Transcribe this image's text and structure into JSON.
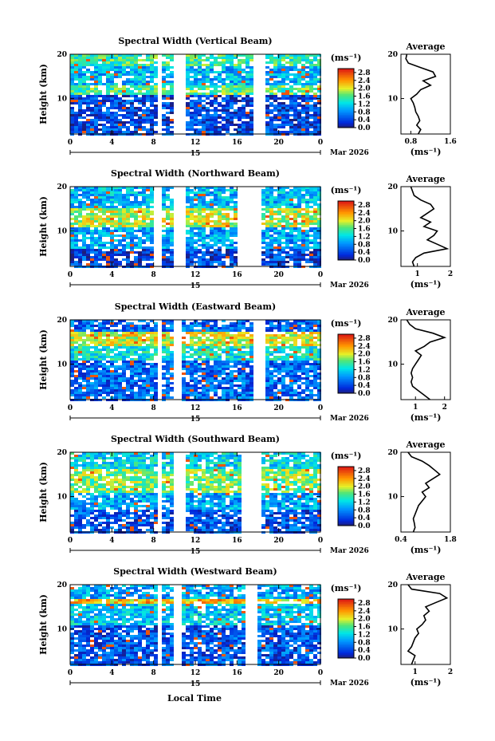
{
  "figure": {
    "xlabel": "Local Time",
    "date_label": "Mar 2026",
    "day_label": "15",
    "ylabel": "Height (km)",
    "unit_label": "(ms⁻¹)",
    "avg_title": "Average",
    "avg_xlabel": "(ms⁻¹)"
  },
  "chart_data": [
    {
      "type": "heatmap",
      "title": "Spectral Width (Vertical Beam)",
      "x_ticks": [
        "0",
        "4",
        "8",
        "12",
        "16",
        "20",
        "0"
      ],
      "xlim": [
        0,
        24
      ],
      "y_ticks": [
        "10",
        "20"
      ],
      "ylim": [
        2,
        20
      ],
      "colorbar_ticks": [
        "0.0",
        "0.4",
        "0.8",
        "1.2",
        "1.6",
        "2.0",
        "2.4",
        "2.8"
      ],
      "colorbar_range": [
        0,
        3
      ],
      "data_gaps_hours": [
        [
          8.3,
          8.6
        ],
        [
          10.0,
          10.9
        ],
        [
          17.5,
          18.7
        ]
      ],
      "layers": [
        {
          "y0": 17.5,
          "y1": 20,
          "v": 1.5
        },
        {
          "y0": 13,
          "y1": 17.5,
          "v": 1.0
        },
        {
          "y0": 11,
          "y1": 13,
          "v": 1.6
        },
        {
          "y0": 2,
          "y1": 11,
          "v": 0.4
        }
      ],
      "average": {
        "xlim": [
          0.6,
          1.6
        ],
        "x_ticks": [
          "0.8",
          "1.6"
        ],
        "y_ticks": [
          "10",
          "20"
        ],
        "heights": [
          2,
          3,
          4,
          5,
          6,
          7,
          8,
          9,
          10,
          11,
          12,
          13,
          14,
          15,
          16,
          17,
          18,
          19,
          20
        ],
        "values": [
          0.95,
          1.0,
          0.92,
          0.98,
          0.95,
          0.9,
          0.88,
          0.85,
          0.8,
          0.92,
          1.0,
          1.2,
          1.05,
          1.3,
          1.25,
          1.0,
          0.75,
          0.7,
          0.72
        ]
      }
    },
    {
      "type": "heatmap",
      "title": "Spectral Width (Northward Beam)",
      "x_ticks": [
        "0",
        "4",
        "8",
        "12",
        "16",
        "20",
        "0"
      ],
      "xlim": [
        0,
        24
      ],
      "y_ticks": [
        "10",
        "20"
      ],
      "ylim": [
        2,
        20
      ],
      "colorbar_ticks": [
        "0.0",
        "0.4",
        "0.8",
        "1.2",
        "1.6",
        "2.0",
        "2.4",
        "2.8"
      ],
      "colorbar_range": [
        0,
        3
      ],
      "data_gaps_hours": [
        [
          8.2,
          8.7
        ],
        [
          10.1,
          11.0
        ],
        [
          16.0,
          18.5
        ]
      ],
      "layers": [
        {
          "y0": 15,
          "y1": 20,
          "v": 1.0
        },
        {
          "y0": 11,
          "y1": 15,
          "v": 1.9
        },
        {
          "y0": 6,
          "y1": 11,
          "v": 0.9
        },
        {
          "y0": 2,
          "y1": 6,
          "v": 0.4
        }
      ],
      "average": {
        "xlim": [
          0.5,
          2.0
        ],
        "x_ticks": [
          "1",
          "2"
        ],
        "y_ticks": [
          "10",
          "20"
        ],
        "heights": [
          2,
          3,
          4,
          5,
          6,
          7,
          8,
          9,
          10,
          11,
          12,
          13,
          14,
          15,
          16,
          17,
          18,
          19,
          20
        ],
        "values": [
          0.9,
          0.85,
          0.95,
          1.2,
          1.9,
          1.6,
          1.3,
          1.5,
          1.6,
          1.2,
          1.4,
          1.1,
          1.3,
          1.5,
          1.4,
          1.1,
          0.9,
          0.85,
          0.8
        ]
      }
    },
    {
      "type": "heatmap",
      "title": "Spectral Width (Eastward Beam)",
      "x_ticks": [
        "0",
        "4",
        "8",
        "12",
        "16",
        "20",
        "0"
      ],
      "xlim": [
        0,
        24
      ],
      "y_ticks": [
        "10",
        "20"
      ],
      "ylim": [
        2,
        20
      ],
      "colorbar_ticks": [
        "0.0",
        "0.4",
        "0.8",
        "1.2",
        "1.6",
        "2.0",
        "2.4",
        "2.8"
      ],
      "colorbar_range": [
        0,
        3
      ],
      "data_gaps_hours": [
        [
          8.5,
          8.8
        ],
        [
          10.0,
          10.8
        ],
        [
          17.5,
          18.7
        ]
      ],
      "layers": [
        {
          "y0": 17.5,
          "y1": 20,
          "v": 0.6
        },
        {
          "y0": 14,
          "y1": 17.5,
          "v": 2.0
        },
        {
          "y0": 11,
          "y1": 14,
          "v": 1.3
        },
        {
          "y0": 2,
          "y1": 11,
          "v": 0.6
        }
      ],
      "average": {
        "xlim": [
          0.5,
          2.2
        ],
        "x_ticks": [
          "1",
          "2"
        ],
        "y_ticks": [
          "10",
          "20"
        ],
        "heights": [
          2,
          3,
          4,
          5,
          6,
          7,
          8,
          9,
          10,
          11,
          12,
          13,
          14,
          15,
          16,
          17,
          18,
          19,
          20
        ],
        "values": [
          1.5,
          1.3,
          1.1,
          0.9,
          0.85,
          0.9,
          0.85,
          0.9,
          1.0,
          1.1,
          1.2,
          1.0,
          1.3,
          1.5,
          2.0,
          1.6,
          1.0,
          0.8,
          0.7
        ]
      }
    },
    {
      "type": "heatmap",
      "title": "Spectral Width (Southward Beam)",
      "x_ticks": [
        "0",
        "4",
        "8",
        "12",
        "16",
        "20",
        "0"
      ],
      "xlim": [
        0,
        24
      ],
      "y_ticks": [
        "10",
        "20"
      ],
      "ylim": [
        2,
        20
      ],
      "colorbar_ticks": [
        "0.0",
        "0.4",
        "0.8",
        "1.2",
        "1.6",
        "2.0",
        "2.4",
        "2.8"
      ],
      "colorbar_range": [
        0,
        3
      ],
      "data_gaps_hours": [
        [
          8.3,
          8.6
        ],
        [
          10.1,
          10.9
        ],
        [
          16.5,
          18.5
        ]
      ],
      "layers": [
        {
          "y0": 16,
          "y1": 20,
          "v": 1.2
        },
        {
          "y0": 11,
          "y1": 16,
          "v": 1.7
        },
        {
          "y0": 7,
          "y1": 11,
          "v": 0.9
        },
        {
          "y0": 2,
          "y1": 7,
          "v": 0.5
        }
      ],
      "average": {
        "xlim": [
          0.4,
          1.8
        ],
        "x_ticks": [
          "0.4",
          "1.8"
        ],
        "y_ticks": [
          "10",
          "20"
        ],
        "heights": [
          2,
          3,
          4,
          5,
          6,
          7,
          8,
          9,
          10,
          11,
          12,
          13,
          14,
          15,
          16,
          17,
          18,
          19,
          20
        ],
        "values": [
          0.75,
          0.8,
          0.78,
          0.75,
          0.8,
          0.85,
          0.9,
          1.0,
          1.1,
          1.0,
          1.2,
          1.1,
          1.3,
          1.5,
          1.35,
          1.2,
          1.0,
          0.7,
          0.6
        ]
      }
    },
    {
      "type": "heatmap",
      "title": "Spectral Width (Westward Beam)",
      "x_ticks": [
        "0",
        "4",
        "8",
        "12",
        "16",
        "20",
        "0"
      ],
      "xlim": [
        0,
        24
      ],
      "y_ticks": [
        "10",
        "20"
      ],
      "ylim": [
        2,
        20
      ],
      "colorbar_ticks": [
        "0.0",
        "0.4",
        "0.8",
        "1.2",
        "1.6",
        "2.0",
        "2.4",
        "2.8"
      ],
      "colorbar_range": [
        0,
        3
      ],
      "data_gaps_hours": [
        [
          8.4,
          8.7
        ],
        [
          10.0,
          10.8
        ],
        [
          16.7,
          18.0
        ]
      ],
      "layers": [
        {
          "y0": 17,
          "y1": 20,
          "v": 0.9
        },
        {
          "y0": 15.5,
          "y1": 17,
          "v": 2.2
        },
        {
          "y0": 11,
          "y1": 15.5,
          "v": 1.1
        },
        {
          "y0": 2,
          "y1": 11,
          "v": 0.5
        }
      ],
      "average": {
        "xlim": [
          0.6,
          2.0
        ],
        "x_ticks": [
          "1",
          "2"
        ],
        "y_ticks": [
          "10",
          "20"
        ],
        "heights": [
          2,
          3,
          4,
          5,
          6,
          7,
          8,
          9,
          10,
          11,
          12,
          13,
          14,
          15,
          16,
          17,
          18,
          19,
          20
        ],
        "values": [
          0.9,
          0.95,
          1.0,
          0.8,
          0.9,
          0.95,
          1.0,
          1.1,
          1.05,
          1.2,
          1.3,
          1.25,
          1.4,
          1.3,
          1.6,
          1.9,
          1.7,
          0.9,
          0.8
        ]
      }
    }
  ]
}
